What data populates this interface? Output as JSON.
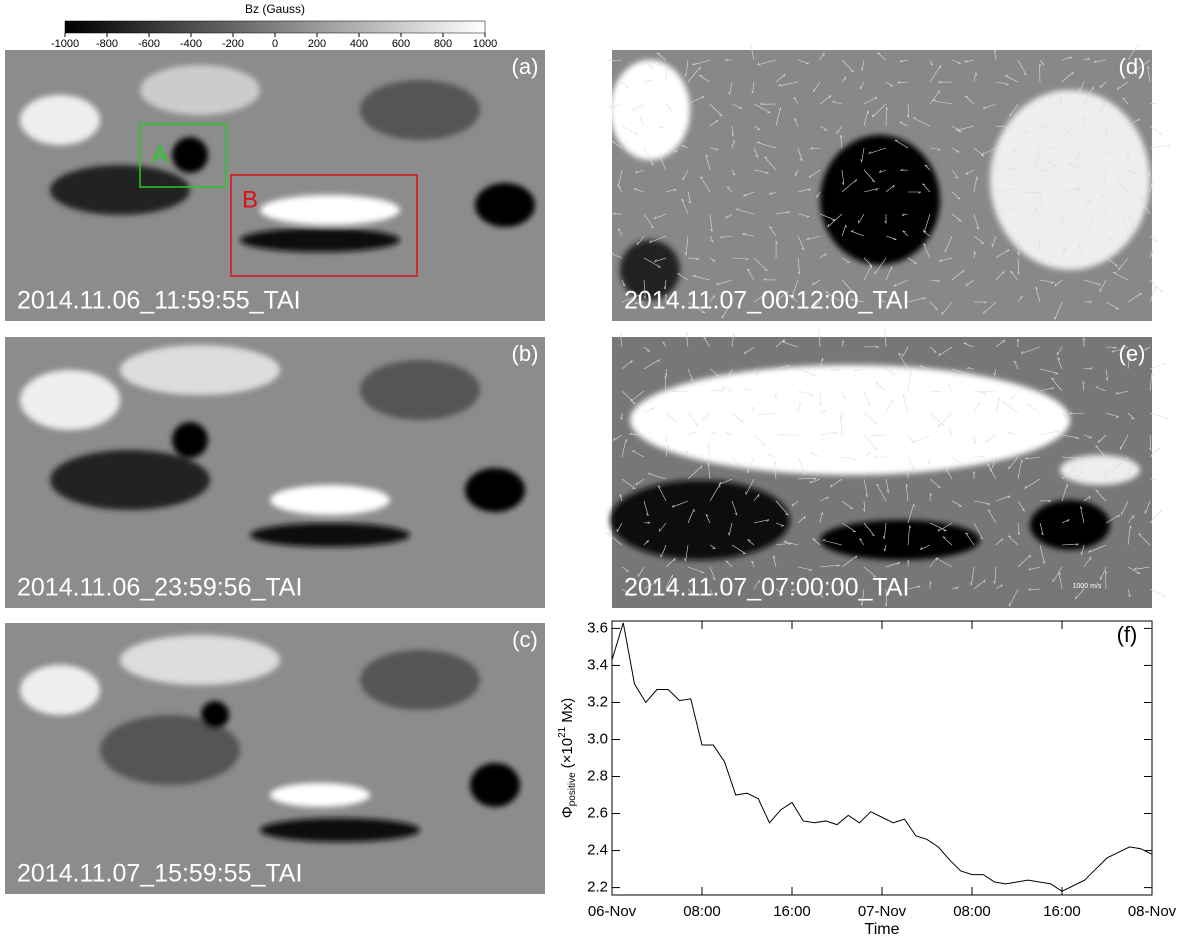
{
  "colorbar": {
    "title": "Bz (Gauss)",
    "ticks": [
      -1000,
      -800,
      -600,
      -400,
      -200,
      0,
      200,
      400,
      600,
      800,
      1000
    ]
  },
  "panels": [
    {
      "label": "(a)",
      "timestamp": "2014.11.06_11:59:55_TAI"
    },
    {
      "label": "(b)",
      "timestamp": "2014.11.06_23:59:56_TAI"
    },
    {
      "label": "(c)",
      "timestamp": "2014.11.07_15:59:55_TAI"
    },
    {
      "label": "(d)",
      "timestamp": "2014.11.07_00:12:00_TAI"
    },
    {
      "label": "(e)",
      "timestamp": "2014.11.07_07:00:00_TAI"
    }
  ],
  "boxes": [
    {
      "label": "A",
      "color": "#22cc22"
    },
    {
      "label": "B",
      "color": "#dd1111"
    }
  ],
  "velocity_scale": "1000 m/s",
  "chart_data": {
    "type": "line",
    "panel_label": "(f)",
    "x_label": "Time",
    "y_label": {
      "symbol": "Φ",
      "subscript": "positive",
      "text": "(×10",
      "superscript": "21",
      "unit": "Mx)"
    },
    "x": [
      0,
      1,
      2,
      3,
      4,
      5,
      6,
      7,
      8,
      9,
      10,
      11,
      12,
      13,
      14,
      15,
      16,
      17,
      18,
      19,
      20,
      21,
      22,
      23,
      24,
      25,
      26,
      27,
      28,
      29,
      30,
      31,
      32,
      33,
      34,
      35,
      36,
      37,
      38,
      39,
      40,
      41,
      42,
      43,
      44,
      45,
      46,
      47,
      48
    ],
    "values": [
      3.43,
      3.63,
      3.3,
      3.2,
      3.27,
      3.27,
      3.21,
      3.22,
      2.97,
      2.97,
      2.88,
      2.7,
      2.71,
      2.68,
      2.55,
      2.62,
      2.66,
      2.56,
      2.55,
      2.56,
      2.54,
      2.59,
      2.55,
      2.61,
      2.58,
      2.55,
      2.57,
      2.48,
      2.46,
      2.42,
      2.35,
      2.29,
      2.27,
      2.27,
      2.23,
      2.22,
      2.23,
      2.24,
      2.23,
      2.22,
      2.18,
      2.21,
      2.24,
      2.3,
      2.36,
      2.39,
      2.42,
      2.41,
      2.38
    ],
    "color": "#000000",
    "xlim": [
      0,
      48
    ],
    "xticks": [
      {
        "value": 0,
        "label": "06-Nov"
      },
      {
        "value": 8,
        "label": "08:00"
      },
      {
        "value": 16,
        "label": "16:00"
      },
      {
        "value": 24,
        "label": "07-Nov"
      },
      {
        "value": 32,
        "label": "08:00"
      },
      {
        "value": 40,
        "label": "16:00"
      },
      {
        "value": 48,
        "label": "08-Nov"
      }
    ],
    "ylim": [
      2.16,
      3.64
    ],
    "yticks": [
      2.2,
      2.4,
      2.6,
      2.8,
      {
        "value": 3,
        "label": "3.0"
      },
      3.2,
      3.4,
      3.6
    ]
  }
}
